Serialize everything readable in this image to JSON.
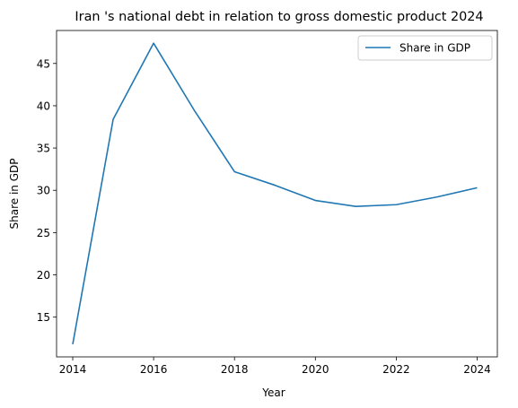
{
  "chart_data": {
    "type": "line",
    "title": "Iran 's national debt in relation to gross domestic product 2024",
    "xlabel": "Year",
    "ylabel": "Share in GDP",
    "xlim": [
      2013.6,
      2024.5
    ],
    "ylim": [
      10.3,
      48.9
    ],
    "xticks": [
      2014,
      2016,
      2018,
      2020,
      2022,
      2024
    ],
    "yticks": [
      15,
      20,
      25,
      30,
      35,
      40,
      45
    ],
    "grid": false,
    "legend": "top-right",
    "series": [
      {
        "name": "Share in GDP",
        "color": "#1f77b4",
        "x": [
          2014,
          2015,
          2016,
          2017,
          2018,
          2019,
          2020,
          2021,
          2022,
          2023,
          2024
        ],
        "y": [
          11.8,
          38.4,
          47.4,
          39.5,
          32.2,
          30.6,
          28.8,
          28.1,
          28.3,
          29.2,
          30.3
        ]
      }
    ]
  }
}
